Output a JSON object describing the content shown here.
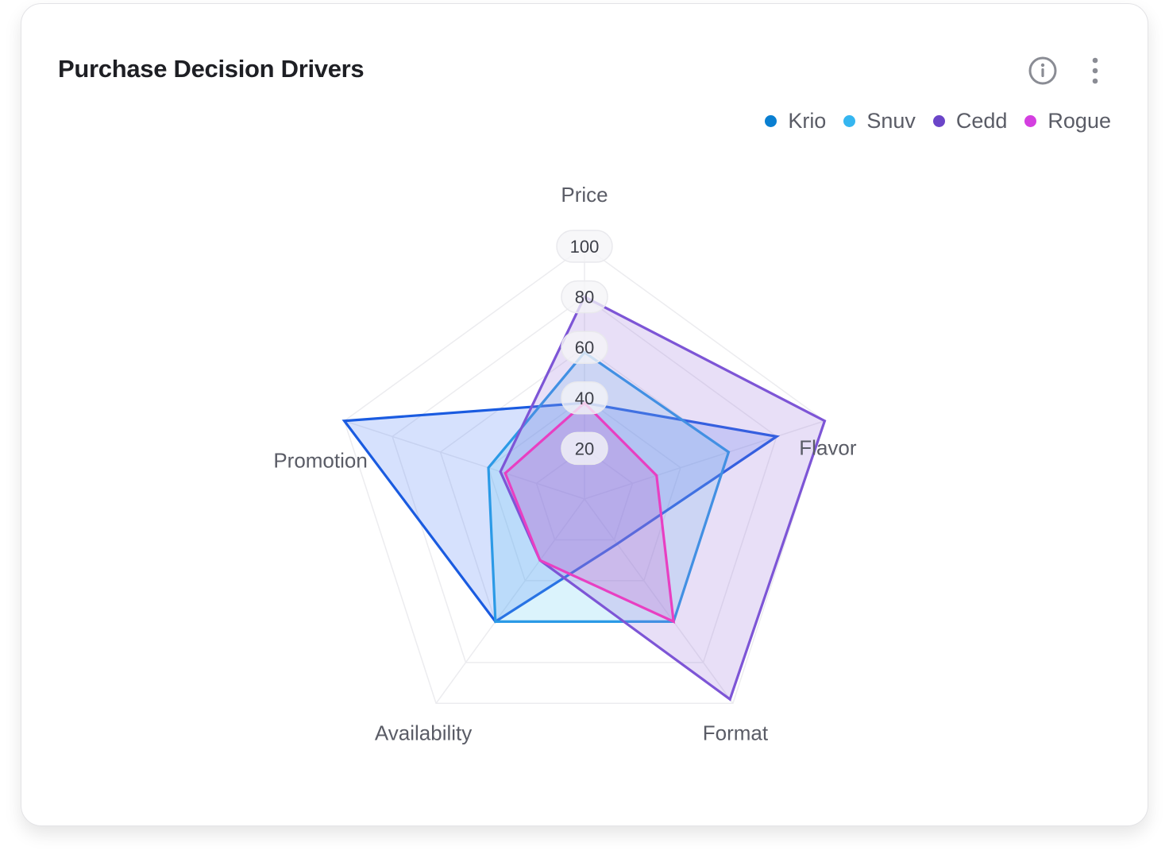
{
  "card": {
    "title": "Purchase Decision Drivers",
    "info_icon": "info-icon",
    "menu_icon": "more-vertical-icon"
  },
  "colors": {
    "Krio": "#0a7fd1",
    "Snuv": "#35b6f0",
    "Cedd": "#6b45c8",
    "Rogue": "#d43fe0",
    "Krio_line": "#1a5be0",
    "Snuv_line": "#2b9ae6",
    "Cedd_line": "#7d55d6",
    "Rogue_line": "#e83fc2"
  },
  "chart_data": {
    "type": "radar",
    "axes": [
      "Price",
      "Flavor",
      "Format",
      "Availability",
      "Promotion"
    ],
    "ticks": [
      20,
      40,
      60,
      80,
      100
    ],
    "range": [
      0,
      100
    ],
    "legend_position": "top-right",
    "series": [
      {
        "name": "Krio",
        "values": [
          38,
          80,
          22,
          60,
          100
        ]
      },
      {
        "name": "Snuv",
        "values": [
          58,
          60,
          60,
          60,
          40
        ]
      },
      {
        "name": "Cedd",
        "values": [
          80,
          100,
          98,
          30,
          35
        ]
      },
      {
        "name": "Rogue",
        "values": [
          38,
          30,
          60,
          30,
          33
        ]
      }
    ]
  }
}
